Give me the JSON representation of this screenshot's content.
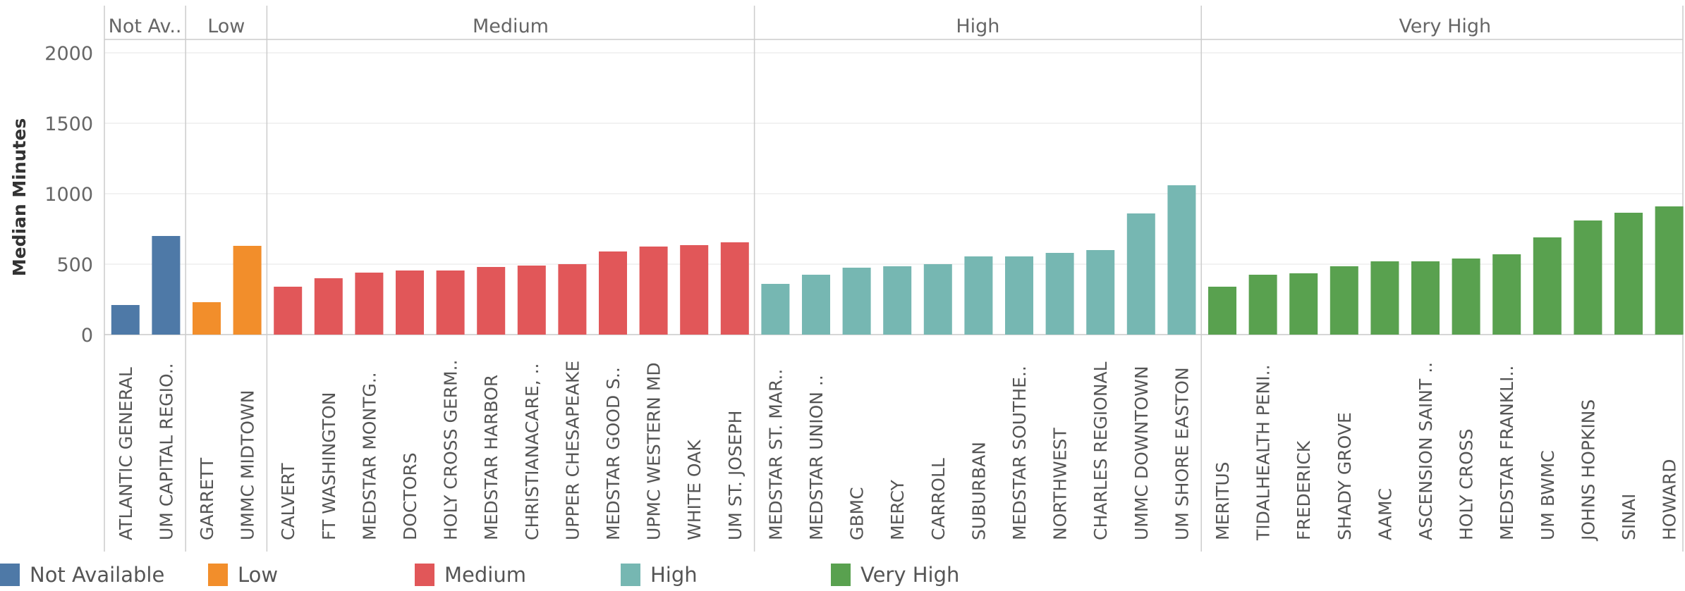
{
  "chart_data": {
    "type": "bar",
    "ylabel": "Median Minutes",
    "ylim": [
      0,
      2000
    ],
    "yticks": [
      "0",
      "500",
      "1000",
      "1500",
      "2000"
    ],
    "grid": true,
    "groups": [
      {
        "name": "Not Available",
        "header": "Not Av..",
        "color": "#4e79a7",
        "categories": [
          "ATLANTIC GENERAL",
          "UM CAPITAL REGIO.."
        ],
        "values": [
          210,
          700
        ]
      },
      {
        "name": "Low",
        "header": "Low",
        "color": "#f28e2b",
        "categories": [
          "GARRETT",
          "UMMC MIDTOWN"
        ],
        "values": [
          230,
          630
        ]
      },
      {
        "name": "Medium",
        "header": "Medium",
        "color": "#e15759",
        "categories": [
          "CALVERT",
          "FT WASHINGTON",
          "MEDSTAR MONTG..",
          "DOCTORS",
          "HOLY CROSS GERM..",
          "MEDSTAR HARBOR",
          "CHRISTIANACARE, ..",
          "UPPER CHESAPEAKE",
          "MEDSTAR GOOD S..",
          "UPMC WESTERN MD",
          "WHITE OAK",
          "UM ST. JOSEPH"
        ],
        "values": [
          340,
          400,
          440,
          455,
          455,
          480,
          490,
          500,
          590,
          625,
          635,
          655
        ]
      },
      {
        "name": "High",
        "header": "High",
        "color": "#76b7b2",
        "categories": [
          "MEDSTAR ST. MAR..",
          "MEDSTAR UNION ..",
          "GBMC",
          "MERCY",
          "CARROLL",
          "SUBURBAN",
          "MEDSTAR SOUTHE..",
          "NORTHWEST",
          "CHARLES REGIONAL",
          "UMMC DOWNTOWN",
          "UM SHORE EASTON"
        ],
        "values": [
          360,
          425,
          475,
          485,
          500,
          555,
          555,
          580,
          600,
          860,
          1060
        ]
      },
      {
        "name": "Very High",
        "header": "Very High",
        "color": "#59a14f",
        "categories": [
          "MERITUS",
          "TIDALHEALTH PENI..",
          "FREDERICK",
          "SHADY GROVE",
          "AAMC",
          "ASCENSION SAINT ..",
          "HOLY CROSS",
          "MEDSTAR FRANKLI..",
          "UM BWMC",
          "JOHNS HOPKINS",
          "SINAI",
          "HOWARD"
        ],
        "values": [
          340,
          425,
          435,
          485,
          520,
          520,
          540,
          570,
          690,
          810,
          865,
          910
        ]
      }
    ],
    "legend": {
      "position": "bottom",
      "items": [
        {
          "label": "Not Available",
          "color": "#4e79a7"
        },
        {
          "label": "Low",
          "color": "#f28e2b"
        },
        {
          "label": "Medium",
          "color": "#e15759"
        },
        {
          "label": "High",
          "color": "#76b7b2"
        },
        {
          "label": "Very High",
          "color": "#59a14f"
        }
      ]
    }
  }
}
